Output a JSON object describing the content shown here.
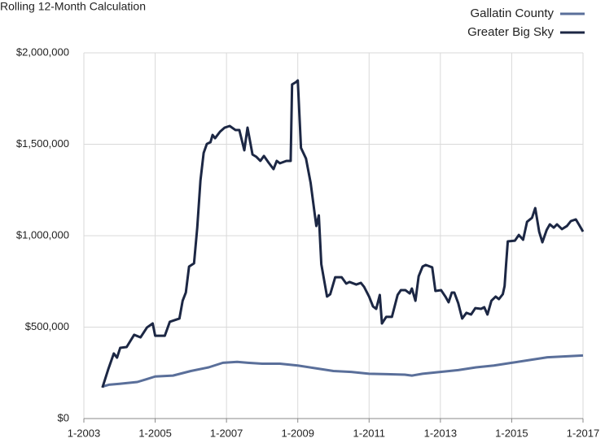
{
  "chart_data": {
    "type": "line",
    "title": "Rolling 12-Month Calculation",
    "xlim": [
      2003,
      2017
    ],
    "xticks": [
      {
        "value": 2003,
        "label": "1-2003"
      },
      {
        "value": 2005,
        "label": "1-2005"
      },
      {
        "value": 2007,
        "label": "1-2007"
      },
      {
        "value": 2009,
        "label": "1-2009"
      },
      {
        "value": 2011,
        "label": "1-2011"
      },
      {
        "value": 2013,
        "label": "1-2013"
      },
      {
        "value": 2015,
        "label": "1-2015"
      },
      {
        "value": 2017,
        "label": "1-2017"
      }
    ],
    "ylim": [
      0,
      2000000
    ],
    "yticks": [
      {
        "value": 0,
        "label": "$0"
      },
      {
        "value": 500000,
        "label": "$500,000"
      },
      {
        "value": 1000000,
        "label": "$1,000,000"
      },
      {
        "value": 1500000,
        "label": "$1,500,000"
      },
      {
        "value": 2000000,
        "label": "$2,000,000"
      }
    ],
    "grid": true,
    "legend": "top-right",
    "series": [
      {
        "name": "Gallatin County",
        "color": "#5a6f9a",
        "x": [
          2003.52,
          2003.7,
          2004.0,
          2004.5,
          2004.75,
          2005.0,
          2005.5,
          2006.0,
          2006.5,
          2006.9,
          2007.3,
          2007.6,
          2008.0,
          2008.5,
          2009.0,
          2009.5,
          2010.0,
          2010.5,
          2011.0,
          2011.5,
          2012.0,
          2012.2,
          2012.5,
          2013.0,
          2013.5,
          2014.0,
          2014.5,
          2015.0,
          2015.5,
          2016.0,
          2016.5,
          2017.0
        ],
        "values": [
          175000,
          185000,
          190000,
          200000,
          215000,
          230000,
          235000,
          260000,
          280000,
          305000,
          310000,
          305000,
          300000,
          300000,
          290000,
          275000,
          260000,
          255000,
          245000,
          243000,
          240000,
          235000,
          245000,
          255000,
          265000,
          280000,
          290000,
          305000,
          320000,
          335000,
          340000,
          345000
        ]
      },
      {
        "name": "Greater Big Sky",
        "color": "#1c2744",
        "x": [
          2003.52,
          2003.68,
          2003.84,
          2003.93,
          2004.02,
          2004.2,
          2004.41,
          2004.59,
          2004.77,
          2004.93,
          2005.0,
          2005.27,
          2005.41,
          2005.68,
          2005.77,
          2005.86,
          2005.95,
          2006.09,
          2006.18,
          2006.27,
          2006.36,
          2006.45,
          2006.55,
          2006.61,
          2006.68,
          2006.82,
          2006.95,
          2007.09,
          2007.25,
          2007.36,
          2007.5,
          2007.59,
          2007.73,
          2007.84,
          2007.95,
          2008.05,
          2008.18,
          2008.32,
          2008.41,
          2008.5,
          2008.68,
          2008.8,
          2008.84,
          2008.95,
          2009.0,
          2009.09,
          2009.23,
          2009.36,
          2009.48,
          2009.52,
          2009.59,
          2009.66,
          2009.82,
          2009.91,
          2010.05,
          2010.23,
          2010.36,
          2010.45,
          2010.64,
          2010.77,
          2010.86,
          2011.0,
          2011.11,
          2011.2,
          2011.3,
          2011.36,
          2011.48,
          2011.64,
          2011.8,
          2011.89,
          2012.02,
          2012.14,
          2012.2,
          2012.3,
          2012.39,
          2012.5,
          2012.59,
          2012.77,
          2012.86,
          2013.02,
          2013.14,
          2013.23,
          2013.32,
          2013.39,
          2013.5,
          2013.61,
          2013.73,
          2013.86,
          2013.98,
          2014.14,
          2014.23,
          2014.32,
          2014.43,
          2014.55,
          2014.64,
          2014.75,
          2014.8,
          2014.84,
          2014.89,
          2015.09,
          2015.2,
          2015.32,
          2015.43,
          2015.57,
          2015.66,
          2015.77,
          2015.86,
          2015.98,
          2016.07,
          2016.18,
          2016.27,
          2016.41,
          2016.55,
          2016.66,
          2016.8,
          2016.91,
          2017.0
        ],
        "values": [
          169000,
          267000,
          356000,
          333000,
          387000,
          391000,
          458000,
          444000,
          498000,
          520000,
          453000,
          453000,
          529000,
          547000,
          644000,
          689000,
          831000,
          849000,
          1044000,
          1302000,
          1453000,
          1502000,
          1511000,
          1551000,
          1533000,
          1569000,
          1591000,
          1600000,
          1578000,
          1578000,
          1467000,
          1591000,
          1444000,
          1431000,
          1409000,
          1436000,
          1400000,
          1364000,
          1409000,
          1396000,
          1409000,
          1409000,
          1827000,
          1840000,
          1849000,
          1480000,
          1422000,
          1289000,
          1111000,
          1053000,
          1111000,
          844000,
          667000,
          680000,
          773000,
          773000,
          738000,
          747000,
          733000,
          742000,
          720000,
          667000,
          613000,
          600000,
          676000,
          520000,
          556000,
          556000,
          676000,
          702000,
          702000,
          684000,
          711000,
          644000,
          778000,
          831000,
          840000,
          827000,
          698000,
          702000,
          667000,
          636000,
          689000,
          689000,
          631000,
          547000,
          578000,
          569000,
          604000,
          600000,
          609000,
          569000,
          644000,
          667000,
          653000,
          680000,
          724000,
          836000,
          969000,
          973000,
          1004000,
          978000,
          1076000,
          1098000,
          1151000,
          1022000,
          964000,
          1031000,
          1062000,
          1044000,
          1062000,
          1036000,
          1053000,
          1080000,
          1089000,
          1053000,
          1022000
        ]
      }
    ]
  }
}
